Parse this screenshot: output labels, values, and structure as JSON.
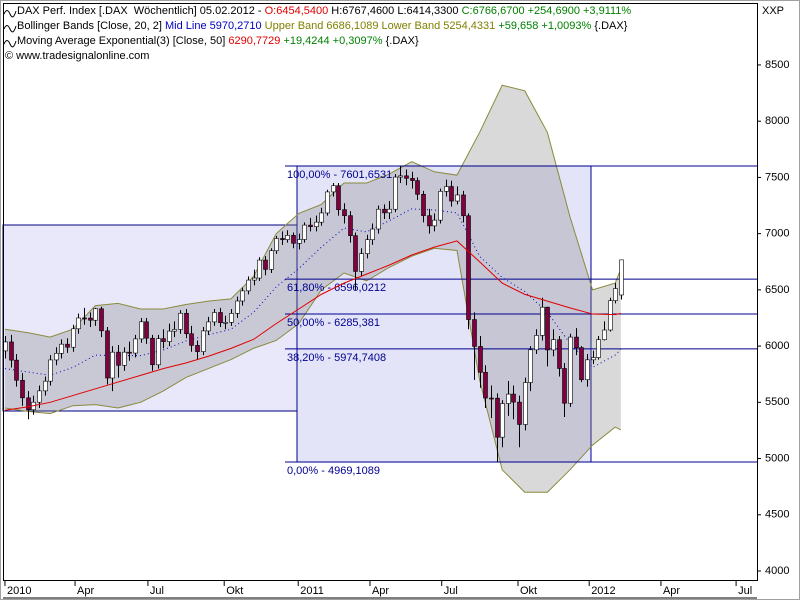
{
  "chart_data": {
    "type": "candlestick",
    "header": [
      [
        {
          "text": "DAX Perf. Index [.DAX  Wöchentlich] 05.02.2012 - ",
          "color": "#000000"
        },
        {
          "text": "O:6454,5400 ",
          "color": "#e00000"
        },
        {
          "text": "H:6767,4600 L:6414,3300 ",
          "color": "#000000"
        },
        {
          "text": "C:6766,6700 +254,6900 +3,9111%",
          "color": "#008000"
        }
      ],
      [
        {
          "text": "Bollinger Bands [Close, 20, 2] ",
          "color": "#000000"
        },
        {
          "text": "Mid Line 5970,2710 ",
          "color": "#0000c0"
        },
        {
          "text": "Upper Band 6686,1089 Lower Band 5254,4331 ",
          "color": "#808000"
        },
        {
          "text": "+59,658 +1,0093% ",
          "color": "#008000"
        },
        {
          "text": "{.DAX}",
          "color": "#000000"
        }
      ],
      [
        {
          "text": "Moving Average Exponential(3) [Close, 50] ",
          "color": "#000000"
        },
        {
          "text": "6290,7729 ",
          "color": "#e00000"
        },
        {
          "text": "+19,4244 +0,3097% ",
          "color": "#008000"
        },
        {
          "text": "{.DAX}",
          "color": "#000000"
        }
      ],
      [
        {
          "text": "© www.tradesignalonline.com",
          "color": "#000000"
        }
      ]
    ],
    "corner_label": "XXP",
    "x": [
      0,
      1,
      2,
      3,
      4,
      5,
      6,
      7,
      8,
      9,
      10,
      11,
      12,
      13,
      14,
      15,
      16,
      17,
      18,
      19,
      20,
      21,
      22,
      23,
      24,
      25,
      26,
      27,
      28,
      29,
      30,
      31,
      32,
      33,
      34,
      35,
      36,
      37,
      38,
      39,
      40,
      41,
      42,
      43,
      44,
      45,
      46,
      47,
      48,
      49,
      50,
      51,
      52,
      53,
      54,
      55,
      56,
      57,
      58,
      59,
      60,
      61,
      62,
      63,
      64,
      65,
      66,
      67,
      68,
      69,
      70,
      71,
      72,
      73,
      74,
      75,
      76,
      77,
      78,
      79,
      80,
      81,
      82,
      83,
      84,
      85,
      86,
      87,
      88,
      89,
      90,
      91,
      92,
      93,
      94,
      95,
      96,
      97,
      98,
      99,
      100,
      101,
      102,
      103,
      104,
      105,
      106,
      107,
      108,
      109
    ],
    "open": [
      5957,
      6037,
      5875,
      5696,
      5540,
      5434,
      5501,
      5602,
      5688,
      5877,
      5936,
      6017,
      5990,
      6154,
      6250,
      6249,
      6230,
      6332,
      6136,
      5716,
      5946,
      5829,
      5946,
      5938,
      6064,
      6216,
      6070,
      5834,
      6066,
      6040,
      6133,
      6148,
      6292,
      6110,
      6006,
      5951,
      6135,
      6215,
      6299,
      6208,
      6211,
      6291,
      6401,
      6491,
      6587,
      6605,
      6765,
      6682,
      6848,
      6957,
      6947,
      6985,
      6914,
      6948,
      7076,
      7062,
      7102,
      7184,
      7371,
      7426,
      7213,
      7160,
      6982,
      6664,
      6822,
      6946,
      7041,
      7217,
      7185,
      7217,
      7503,
      7514,
      7492,
      7472,
      7350,
      7160,
      7069,
      7120,
      7376,
      7419,
      7290,
      7344,
      7159,
      6236,
      5997,
      5767,
      5538,
      5537,
      5190,
      5489,
      5573,
      5502,
      5303,
      5676,
      5967,
      6095,
      6346,
      5966,
      6057,
      5801,
      5492,
      6080,
      5986,
      5701,
      5878,
      5898,
      6057,
      6143,
      6404,
      6454.54
    ],
    "high": [
      6090,
      6100,
      5930,
      5760,
      5600,
      5560,
      5650,
      5730,
      5920,
      5990,
      6060,
      6070,
      6190,
      6290,
      6340,
      6300,
      6340,
      6350,
      6170,
      6000,
      6010,
      5990,
      6040,
      6100,
      6250,
      6250,
      6100,
      6100,
      6150,
      6200,
      6220,
      6320,
      6330,
      6180,
      6050,
      6170,
      6260,
      6330,
      6340,
      6270,
      6330,
      6440,
      6520,
      6620,
      6680,
      6790,
      6800,
      6870,
      6980,
      7020,
      7030,
      7010,
      7000,
      7100,
      7140,
      7160,
      7230,
      7390,
      7450,
      7450,
      7270,
      7200,
      7010,
      6870,
      6990,
      7090,
      7250,
      7260,
      7290,
      7530,
      7600,
      7570,
      7550,
      7500,
      7380,
      7220,
      7180,
      7400,
      7480,
      7470,
      7420,
      7380,
      7180,
      6300,
      6090,
      5830,
      5650,
      5580,
      5520,
      5690,
      5650,
      5560,
      5720,
      6000,
      6150,
      6430,
      6350,
      6150,
      6090,
      5850,
      6110,
      6160,
      6000,
      5930,
      5960,
      6090,
      6220,
      6430,
      6560,
      6767.46
    ],
    "low": [
      5890,
      5810,
      5640,
      5470,
      5350,
      5390,
      5450,
      5560,
      5650,
      5830,
      5890,
      5940,
      5950,
      6110,
      6190,
      6170,
      6180,
      6080,
      5660,
      5600,
      5720,
      5780,
      5870,
      5900,
      6030,
      6020,
      5780,
      5800,
      5980,
      6000,
      6080,
      6110,
      6070,
      5950,
      5880,
      5920,
      6100,
      6180,
      6170,
      6150,
      6180,
      6250,
      6360,
      6460,
      6540,
      6580,
      6630,
      6650,
      6820,
      6900,
      6920,
      6870,
      6860,
      6920,
      7020,
      7020,
      7070,
      7160,
      7330,
      7160,
      7090,
      6920,
      6500,
      6620,
      6780,
      6900,
      7000,
      7130,
      7130,
      7190,
      7450,
      7430,
      7400,
      7300,
      7100,
      7000,
      7020,
      7090,
      7330,
      7240,
      7260,
      7100,
      6150,
      5700,
      5630,
      5450,
      5360,
      4969,
      5100,
      5380,
      5350,
      5100,
      5250,
      5600,
      5930,
      6050,
      5820,
      5910,
      5730,
      5370,
      5460,
      5920,
      5680,
      5640,
      5840,
      5880,
      6050,
      6130,
      6380,
      6414.33
    ],
    "close": [
      6037,
      5875,
      5696,
      5540,
      5434,
      5501,
      5602,
      5688,
      5877,
      5936,
      6017,
      5990,
      6154,
      6250,
      6249,
      6230,
      6332,
      6136,
      5716,
      5946,
      5829,
      5946,
      5938,
      6064,
      6216,
      6070,
      5834,
      6066,
      6040,
      6133,
      6148,
      6292,
      6110,
      6006,
      5951,
      6135,
      6215,
      6299,
      6208,
      6211,
      6291,
      6401,
      6491,
      6587,
      6605,
      6765,
      6682,
      6848,
      6957,
      6947,
      6985,
      6914,
      6948,
      7076,
      7062,
      7102,
      7184,
      7371,
      7426,
      7213,
      7160,
      6982,
      6664,
      6822,
      6946,
      7041,
      7217,
      7185,
      7217,
      7503,
      7514,
      7492,
      7472,
      7350,
      7160,
      7069,
      7120,
      7376,
      7419,
      7290,
      7344,
      7159,
      6236,
      5997,
      5767,
      5538,
      5537,
      5190,
      5489,
      5573,
      5502,
      5303,
      5676,
      5967,
      6095,
      6346,
      5966,
      6057,
      5801,
      5492,
      6080,
      5986,
      5701,
      5878,
      5898,
      6057,
      6143,
      6404,
      6512,
      6766.67
    ],
    "up_color": "#ffffff",
    "down_color": "#800040",
    "bands": {
      "x": [
        0,
        4,
        8,
        12,
        16,
        20,
        24,
        28,
        32,
        36,
        40,
        44,
        48,
        52,
        56,
        60,
        64,
        68,
        72,
        76,
        80,
        84,
        88,
        92,
        96,
        100,
        104,
        108,
        109
      ],
      "upper": [
        6150,
        6120,
        6080,
        6150,
        6360,
        6380,
        6330,
        6330,
        6370,
        6400,
        6420,
        6620,
        7000,
        7180,
        7260,
        7450,
        7450,
        7530,
        7640,
        7550,
        7520,
        7900,
        8320,
        8270,
        7900,
        7150,
        6500,
        6560,
        6686.1089
      ],
      "mid": [
        5800,
        5770,
        5740,
        5810,
        5920,
        5915,
        5915,
        5965,
        6045,
        6100,
        6150,
        6300,
        6525,
        6690,
        6880,
        7050,
        7015,
        7115,
        7220,
        7210,
        7185,
        6800,
        6610,
        6485,
        6300,
        6025,
        5810,
        5920,
        5970.271
      ],
      "lower": [
        5450,
        5420,
        5400,
        5470,
        5480,
        5450,
        5500,
        5600,
        5720,
        5800,
        5880,
        5980,
        6050,
        6200,
        6500,
        6650,
        6580,
        6700,
        6800,
        6870,
        6850,
        5700,
        4900,
        4700,
        4700,
        4900,
        5120,
        5280,
        5254.4331
      ],
      "edge_color": "#8a8a3c",
      "mid_color": "#0000c0"
    },
    "ema": {
      "x": [
        0,
        4,
        8,
        12,
        16,
        20,
        24,
        28,
        32,
        36,
        40,
        44,
        48,
        52,
        56,
        60,
        64,
        68,
        72,
        76,
        80,
        84,
        88,
        92,
        96,
        100,
        104,
        108,
        109
      ],
      "values": [
        5430,
        5460,
        5500,
        5560,
        5620,
        5680,
        5740,
        5800,
        5850,
        5910,
        5980,
        6060,
        6200,
        6330,
        6460,
        6560,
        6640,
        6720,
        6810,
        6880,
        6935,
        6750,
        6560,
        6460,
        6400,
        6340,
        6285,
        6280,
        6290.7729
      ],
      "color": "#e00000"
    },
    "fib_levels": [
      {
        "value": 7601.6531,
        "label": "100,00% - 7601,6531"
      },
      {
        "value": 6596.0212,
        "label": "61,80% - 6596,0212"
      },
      {
        "value": 6285.381,
        "label": "50,00% - 6285,381"
      },
      {
        "value": 5974.7408,
        "label": "38,20% - 5974,7408"
      },
      {
        "value": 4969.1089,
        "label": "0,00% - 4969,1089"
      }
    ],
    "fib_color": "#000090",
    "xlim": [
      -0.35,
      133.1
    ],
    "xticks": [
      {
        "value": 0,
        "label": "2010"
      },
      {
        "value": 12.4,
        "label": "Apr"
      },
      {
        "value": 25.3,
        "label": "Jul"
      },
      {
        "value": 38.8,
        "label": "Okt"
      },
      {
        "value": 51.9,
        "label": "2011"
      },
      {
        "value": 64.6,
        "label": "Apr"
      },
      {
        "value": 77.3,
        "label": "Jul"
      },
      {
        "value": 90.8,
        "label": "Okt"
      },
      {
        "value": 103.4,
        "label": "2012"
      },
      {
        "value": 116.1,
        "label": "Apr"
      },
      {
        "value": 129.4,
        "label": "Jul"
      }
    ],
    "ylim": [
      3920,
      9051
    ],
    "yticks": [
      4000,
      4500,
      5000,
      5500,
      6000,
      6500,
      7000,
      7500,
      8000,
      8500
    ]
  }
}
